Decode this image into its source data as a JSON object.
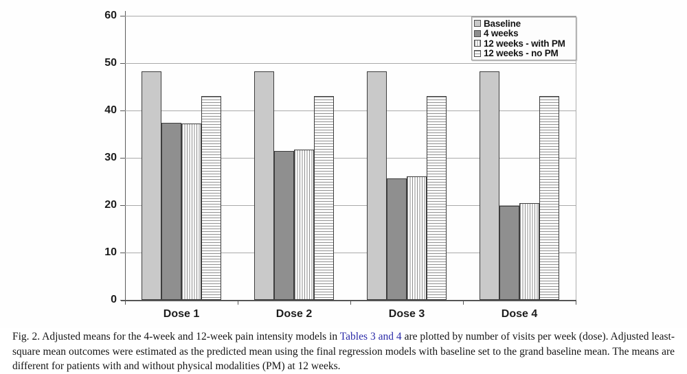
{
  "chart_data": {
    "type": "bar",
    "title": "",
    "xlabel": "",
    "ylabel": "",
    "categories": [
      "Dose 1",
      "Dose 2",
      "Dose 3",
      "Dose 4"
    ],
    "series": [
      {
        "name": "Baseline",
        "pattern": "solid",
        "fill": "#c9c9c9",
        "values": [
          48.3,
          48.3,
          48.3,
          48.3
        ]
      },
      {
        "name": "4 weeks",
        "pattern": "solid",
        "fill": "#8f8f8f",
        "values": [
          37.4,
          31.5,
          25.7,
          19.9
        ]
      },
      {
        "name": "12 weeks - with PM",
        "pattern": "vstripe",
        "fill": "#ffffff",
        "values": [
          37.3,
          31.7,
          26.1,
          20.4
        ]
      },
      {
        "name": "12 weeks - no PM",
        "pattern": "hstripe",
        "fill": "#ffffff",
        "values": [
          43.0,
          43.0,
          43.0,
          43.0
        ]
      }
    ],
    "ylim": [
      0,
      60
    ],
    "yticks": [
      0,
      10,
      20,
      30,
      40,
      50,
      60
    ],
    "grid": true,
    "legend_position": "top-right"
  },
  "caption": {
    "prefix": "Fig. 2. Adjusted means for the 4-week and 12-week pain intensity models in ",
    "link": "Tables 3 and 4",
    "suffix": " are plotted by number of visits per week (dose). Adjusted least-square mean outcomes were estimated as the predicted mean using the final regression models with baseline set to the grand baseline mean. The means are different for patients with and without physical modalities (PM) at 12 weeks.",
    "link_color": "#2b2ba8"
  }
}
